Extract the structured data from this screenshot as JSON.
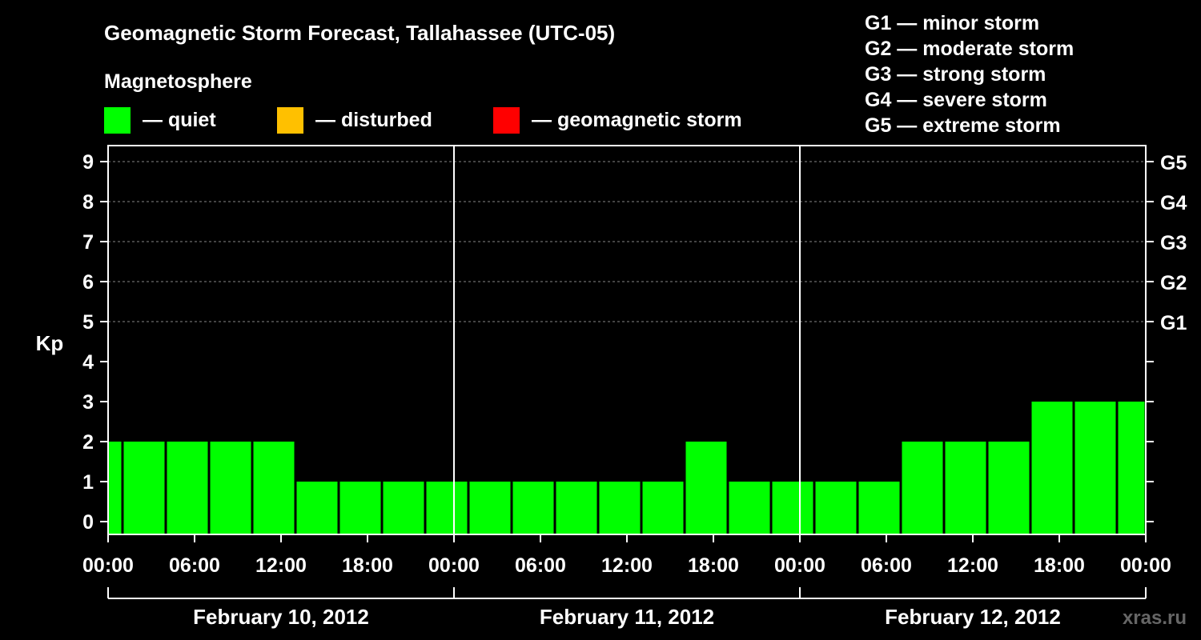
{
  "title": "Geomagnetic Storm Forecast, Tallahassee (UTC-05)",
  "legend": {
    "heading": "Magnetosphere",
    "items": [
      {
        "label": "— quiet",
        "color": "#00ff00"
      },
      {
        "label": "— disturbed",
        "color": "#ffc000"
      },
      {
        "label": "— geomagnetic storm",
        "color": "#ff0000"
      }
    ]
  },
  "storm_scale": [
    "G1 — minor storm",
    "G2 — moderate storm",
    "G3 — strong storm",
    "G4 — severe storm",
    "G5 — extreme storm"
  ],
  "watermark": "xras.ru",
  "chart_data": {
    "type": "bar",
    "ylabel": "Kp",
    "ylim": [
      0,
      9
    ],
    "y_ticks": [
      "0",
      "1",
      "2",
      "3",
      "4",
      "5",
      "6",
      "7",
      "8",
      "9"
    ],
    "right_axis_labels": [
      {
        "kp": 5,
        "label": "G1"
      },
      {
        "kp": 6,
        "label": "G2"
      },
      {
        "kp": 7,
        "label": "G3"
      },
      {
        "kp": 8,
        "label": "G4"
      },
      {
        "kp": 9,
        "label": "G5"
      }
    ],
    "x_tick_labels": [
      "00:00",
      "06:00",
      "12:00",
      "18:00",
      "00:00",
      "06:00",
      "12:00",
      "18:00",
      "00:00",
      "06:00",
      "12:00",
      "18:00",
      "00:00"
    ],
    "x_range_hours": [
      0,
      72
    ],
    "grid": "dashed horizontal at Kp 5-9",
    "days": [
      "February 10, 2012",
      "February 11, 2012",
      "February 12, 2012"
    ],
    "intervals": [
      {
        "start_hour": -2,
        "kp": 2,
        "level": "quiet"
      },
      {
        "start_hour": 1,
        "kp": 2,
        "level": "quiet"
      },
      {
        "start_hour": 4,
        "kp": 2,
        "level": "quiet"
      },
      {
        "start_hour": 7,
        "kp": 2,
        "level": "quiet"
      },
      {
        "start_hour": 10,
        "kp": 2,
        "level": "quiet"
      },
      {
        "start_hour": 13,
        "kp": 1,
        "level": "quiet"
      },
      {
        "start_hour": 16,
        "kp": 1,
        "level": "quiet"
      },
      {
        "start_hour": 19,
        "kp": 1,
        "level": "quiet"
      },
      {
        "start_hour": 22,
        "kp": 1,
        "level": "quiet"
      },
      {
        "start_hour": 25,
        "kp": 1,
        "level": "quiet"
      },
      {
        "start_hour": 28,
        "kp": 1,
        "level": "quiet"
      },
      {
        "start_hour": 31,
        "kp": 1,
        "level": "quiet"
      },
      {
        "start_hour": 34,
        "kp": 1,
        "level": "quiet"
      },
      {
        "start_hour": 37,
        "kp": 1,
        "level": "quiet"
      },
      {
        "start_hour": 40,
        "kp": 2,
        "level": "quiet"
      },
      {
        "start_hour": 43,
        "kp": 1,
        "level": "quiet"
      },
      {
        "start_hour": 46,
        "kp": 1,
        "level": "quiet"
      },
      {
        "start_hour": 49,
        "kp": 1,
        "level": "quiet"
      },
      {
        "start_hour": 52,
        "kp": 1,
        "level": "quiet"
      },
      {
        "start_hour": 55,
        "kp": 2,
        "level": "quiet"
      },
      {
        "start_hour": 58,
        "kp": 2,
        "level": "quiet"
      },
      {
        "start_hour": 61,
        "kp": 2,
        "level": "quiet"
      },
      {
        "start_hour": 64,
        "kp": 3,
        "level": "quiet"
      },
      {
        "start_hour": 67,
        "kp": 3,
        "level": "quiet"
      },
      {
        "start_hour": 70,
        "kp": 3,
        "level": "quiet"
      }
    ]
  }
}
